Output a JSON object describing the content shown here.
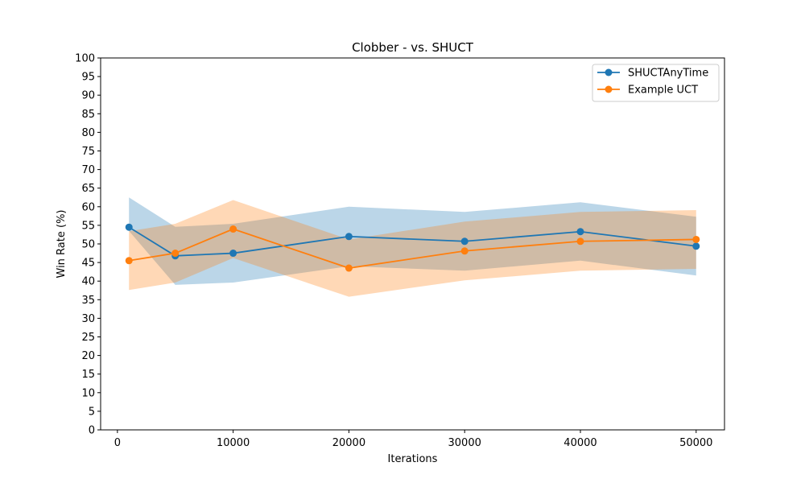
{
  "chart_data": {
    "type": "line",
    "title": "Clobber - vs. SHUCT",
    "xlabel": "Iterations",
    "ylabel": "Win Rate (%)",
    "xlim": [
      -1450,
      52450
    ],
    "ylim": [
      0,
      100
    ],
    "xticks": [
      0,
      10000,
      20000,
      30000,
      40000,
      50000
    ],
    "yticks": [
      0,
      5,
      10,
      15,
      20,
      25,
      30,
      35,
      40,
      45,
      50,
      55,
      60,
      65,
      70,
      75,
      80,
      85,
      90,
      95,
      100
    ],
    "x": [
      1000,
      5000,
      10000,
      20000,
      30000,
      40000,
      50000
    ],
    "grid": false,
    "legend": "top-right",
    "series": [
      {
        "name": "SHUCTAnyTime",
        "color": "#1f77b4",
        "band_color": "#1f77b4",
        "values": [
          54.5,
          46.8,
          47.5,
          52.0,
          50.7,
          53.3,
          49.4
        ],
        "lower": [
          53.5,
          39.0,
          39.6,
          44.0,
          42.8,
          45.5,
          41.5
        ],
        "upper": [
          62.5,
          54.6,
          55.4,
          60.0,
          58.6,
          61.2,
          57.3
        ]
      },
      {
        "name": "Example UCT",
        "color": "#ff7f0e",
        "band_color": "#ff7f0e",
        "values": [
          45.5,
          47.5,
          54.0,
          43.5,
          48.1,
          50.7,
          51.2
        ],
        "lower": [
          37.6,
          39.6,
          46.2,
          35.8,
          40.2,
          42.8,
          43.3
        ],
        "upper": [
          53.4,
          55.4,
          61.8,
          51.2,
          56.0,
          58.6,
          59.1
        ]
      }
    ]
  }
}
